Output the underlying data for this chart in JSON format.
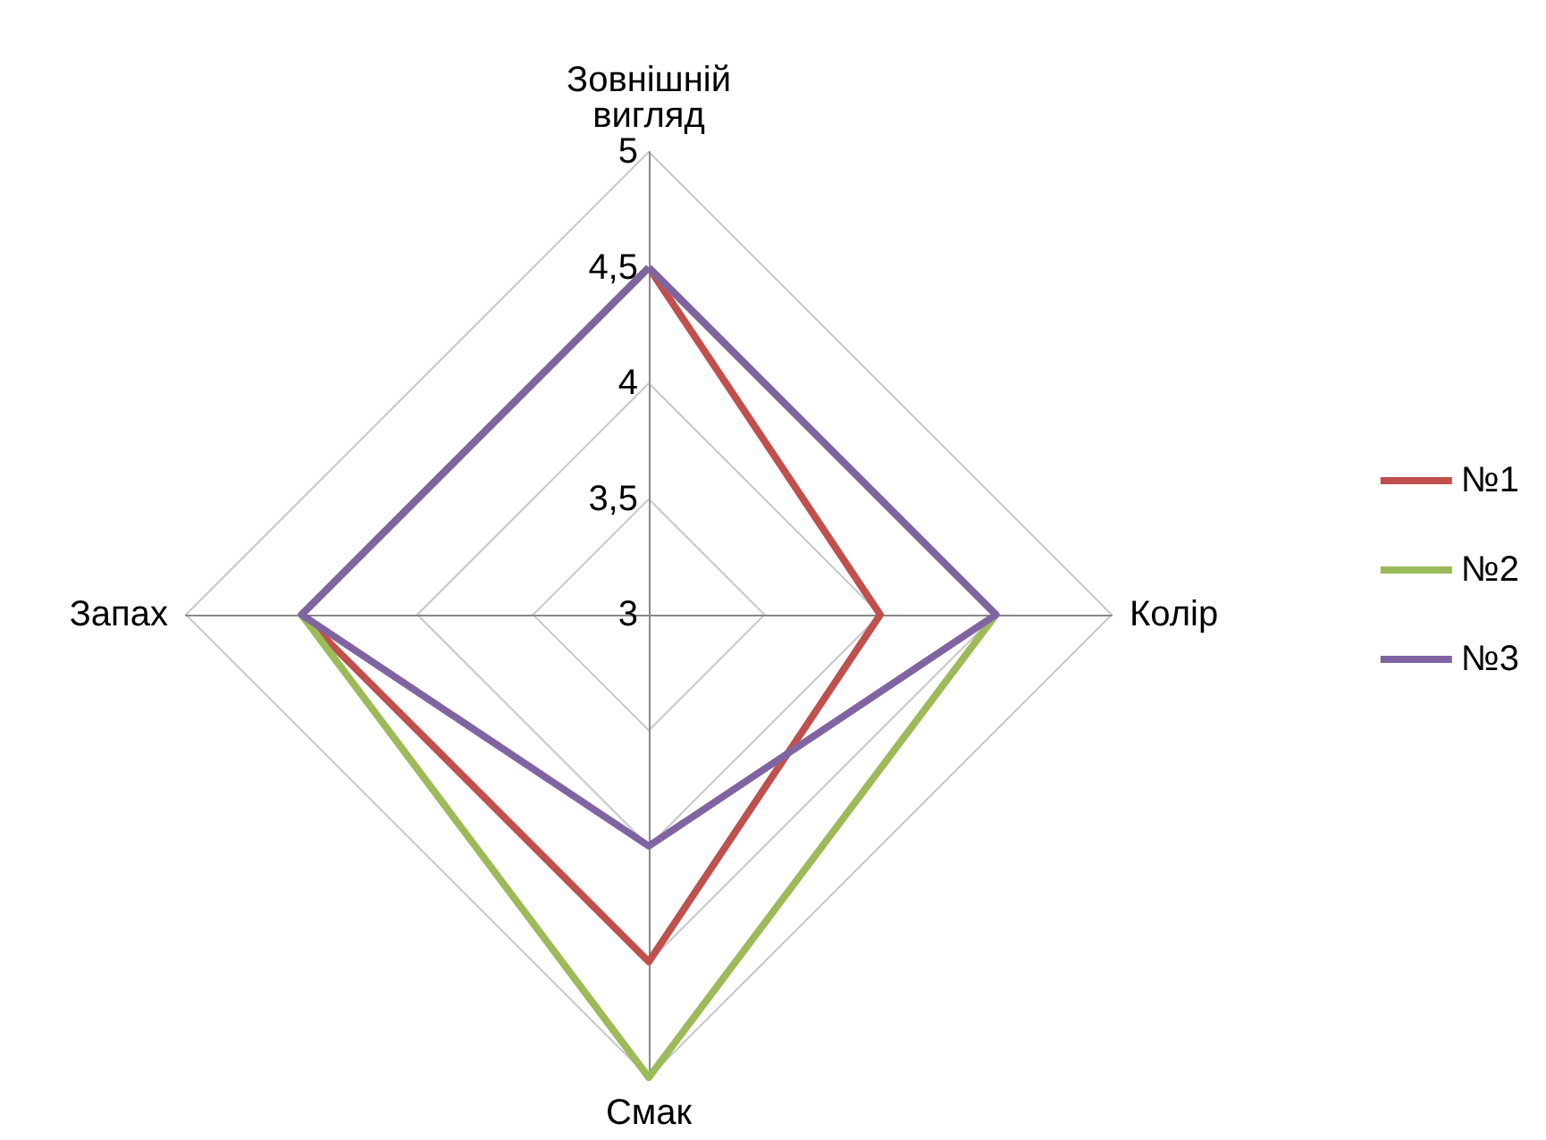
{
  "chart_data": {
    "type": "radar",
    "categories": [
      "Зовнішній вигляд",
      "Колір",
      "Смак",
      "Запах"
    ],
    "ylim": [
      3,
      5
    ],
    "yticks": [
      3,
      {
        "value": 3.5,
        "label": "3,5"
      },
      4,
      {
        "value": 4.5,
        "label": "4,5"
      },
      5
    ],
    "legend": "right",
    "marker": "none",
    "grid": true,
    "series": [
      {
        "name": "№1",
        "color": "#c0504d",
        "values": [
          4.5,
          4,
          4.5,
          4.5
        ]
      },
      {
        "name": "№2",
        "color": "#9bbb59",
        "values": [
          4.5,
          4.5,
          5,
          4.5
        ]
      },
      {
        "name": "№3",
        "color": "#8064a2",
        "values": [
          4.5,
          4.5,
          4,
          4.5
        ]
      }
    ]
  }
}
